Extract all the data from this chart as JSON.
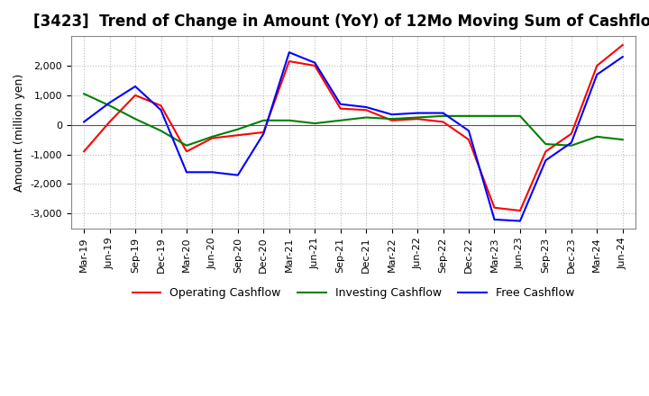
{
  "title": "[3423]  Trend of Change in Amount (YoY) of 12Mo Moving Sum of Cashflows",
  "ylabel": "Amount (million yen)",
  "x_labels": [
    "Mar-19",
    "Jun-19",
    "Sep-19",
    "Dec-19",
    "Mar-20",
    "Jun-20",
    "Sep-20",
    "Dec-20",
    "Mar-21",
    "Jun-21",
    "Sep-21",
    "Dec-21",
    "Mar-22",
    "Jun-22",
    "Sep-22",
    "Dec-22",
    "Mar-23",
    "Jun-23",
    "Sep-23",
    "Dec-23",
    "Mar-24",
    "Jun-24"
  ],
  "operating": [
    -900,
    100,
    1000,
    650,
    -900,
    -450,
    -350,
    -250,
    2150,
    2000,
    550,
    500,
    150,
    200,
    100,
    -500,
    -2800,
    -2900,
    -900,
    -300,
    2000,
    2700
  ],
  "investing": [
    1050,
    650,
    200,
    -200,
    -700,
    -400,
    -150,
    150,
    150,
    50,
    150,
    250,
    200,
    250,
    300,
    300,
    300,
    300,
    -650,
    -700,
    -400,
    -500
  ],
  "free": [
    100,
    750,
    1300,
    500,
    -1600,
    -1600,
    -1700,
    -300,
    2450,
    2100,
    700,
    600,
    350,
    400,
    400,
    -200,
    -3200,
    -3250,
    -1200,
    -600,
    1700,
    2300
  ],
  "operating_color": "#ff0000",
  "investing_color": "#008000",
  "free_color": "#0000ff",
  "ylim": [
    -3500,
    3000
  ],
  "yticks": [
    -3000,
    -2000,
    -1000,
    0,
    1000,
    2000
  ],
  "background_color": "#ffffff",
  "grid_color": "#bbbbbb",
  "title_fontsize": 12,
  "axis_fontsize": 9,
  "tick_fontsize": 8,
  "legend_fontsize": 9
}
